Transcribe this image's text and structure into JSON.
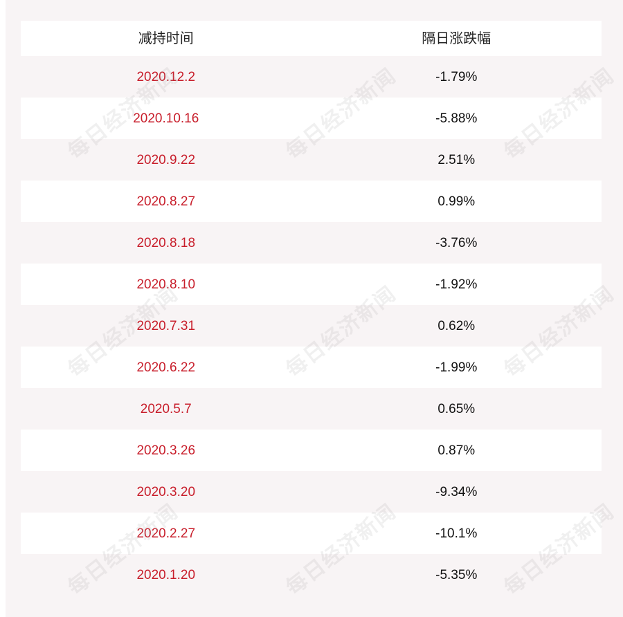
{
  "table": {
    "headers": [
      "减持时间",
      "隔日涨跌幅"
    ],
    "rows": [
      {
        "date": "2020.12.2",
        "change": "-1.79%"
      },
      {
        "date": "2020.10.16",
        "change": "-5.88%"
      },
      {
        "date": "2020.9.22",
        "change": "2.51%"
      },
      {
        "date": "2020.8.27",
        "change": "0.99%"
      },
      {
        "date": "2020.8.18",
        "change": "-3.76%"
      },
      {
        "date": "2020.8.10",
        "change": "-1.92%"
      },
      {
        "date": "2020.7.31",
        "change": "0.62%"
      },
      {
        "date": "2020.6.22",
        "change": "-1.99%"
      },
      {
        "date": "2020.5.7",
        "change": "0.65%"
      },
      {
        "date": "2020.3.26",
        "change": "0.87%"
      },
      {
        "date": "2020.3.20",
        "change": "-9.34%"
      },
      {
        "date": "2020.2.27",
        "change": "-10.1%"
      },
      {
        "date": "2020.1.20",
        "change": "-5.35%"
      }
    ]
  },
  "watermark": {
    "text": "每日经济新闻"
  },
  "colors": {
    "date_text": "#c81e2b",
    "change_text": "#111111",
    "background": "#f8f4f5",
    "row_white": "#ffffff"
  }
}
